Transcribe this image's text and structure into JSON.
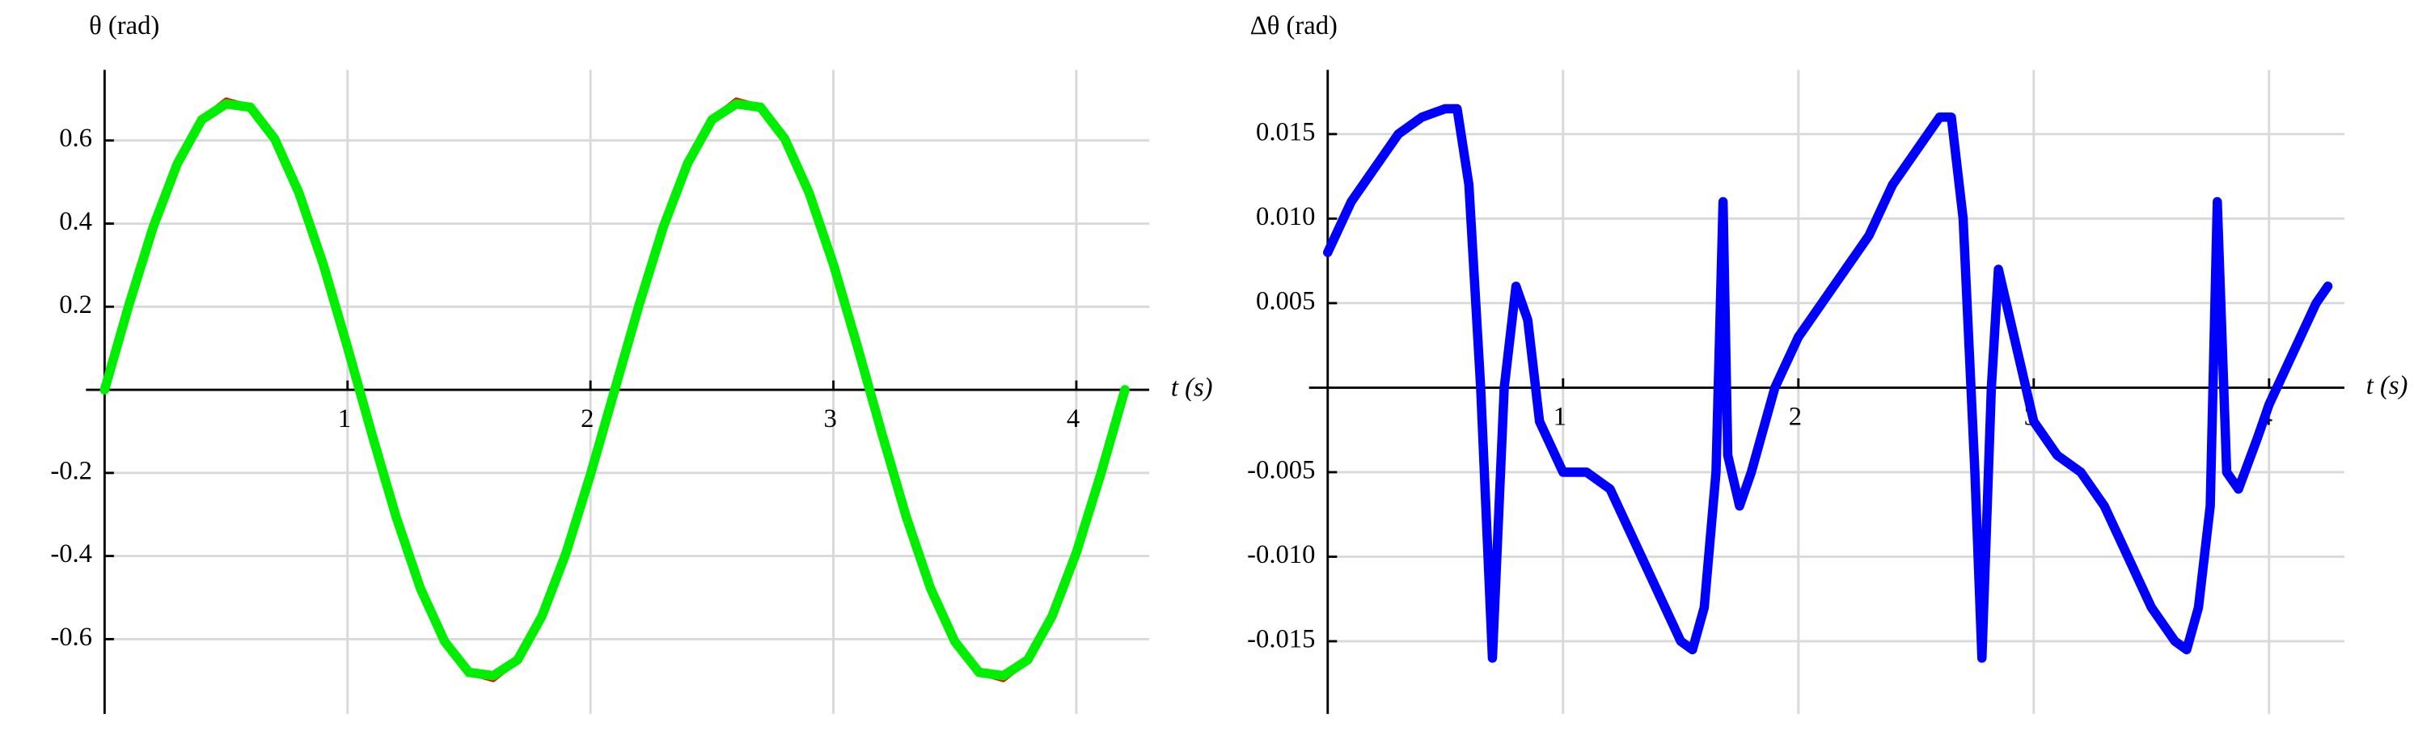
{
  "chart_data": [
    {
      "type": "line",
      "ylabel": "θ (rad)",
      "xlabel": "t (s)",
      "x": [
        0,
        0.1,
        0.2,
        0.3,
        0.4,
        0.5,
        0.6,
        0.7,
        0.8,
        0.9,
        1.0,
        1.1,
        1.2,
        1.3,
        1.4,
        1.5,
        1.6,
        1.7,
        1.8,
        1.9,
        2.0,
        2.1,
        2.2,
        2.3,
        2.4,
        2.5,
        2.6,
        2.7,
        2.8,
        2.9,
        3.0,
        3.1,
        3.2,
        3.3,
        3.4,
        3.5,
        3.6,
        3.7,
        3.8,
        3.9,
        4.0,
        4.1,
        4.2
      ],
      "series": [
        {
          "color": "#ff0000",
          "values": [
            0,
            0.206,
            0.394,
            0.547,
            0.652,
            0.698,
            0.682,
            0.606,
            0.476,
            0.304,
            0.104,
            -0.104,
            -0.304,
            -0.476,
            -0.606,
            -0.682,
            -0.698,
            -0.652,
            -0.547,
            -0.394,
            -0.206,
            0,
            0.206,
            0.394,
            0.547,
            0.652,
            0.698,
            0.682,
            0.606,
            0.476,
            0.304,
            0.104,
            -0.104,
            -0.304,
            -0.476,
            -0.606,
            -0.682,
            -0.698,
            -0.652,
            -0.547,
            -0.394,
            -0.206,
            0
          ]
        },
        {
          "color": "#00ee00",
          "values": [
            0,
            0.204,
            0.392,
            0.545,
            0.65,
            0.688,
            0.68,
            0.604,
            0.474,
            0.302,
            0.102,
            -0.106,
            -0.306,
            -0.478,
            -0.606,
            -0.68,
            -0.688,
            -0.65,
            -0.545,
            -0.392,
            -0.204,
            0,
            0.204,
            0.392,
            0.545,
            0.65,
            0.688,
            0.68,
            0.604,
            0.474,
            0.302,
            0.102,
            -0.106,
            -0.306,
            -0.478,
            -0.606,
            -0.68,
            -0.688,
            -0.65,
            -0.545,
            -0.392,
            -0.204,
            0
          ]
        }
      ],
      "xlim": [
        0,
        4.3
      ],
      "ylim": [
        -0.78,
        0.77
      ],
      "xticks": [
        1,
        2,
        3,
        4
      ],
      "yticks": [
        -0.6,
        -0.4,
        -0.2,
        0.2,
        0.4,
        0.6
      ],
      "grid": true
    },
    {
      "type": "line",
      "ylabel": "Δθ (rad)",
      "xlabel": "t (s)",
      "x": [
        0,
        0.1,
        0.2,
        0.3,
        0.4,
        0.5,
        0.55,
        0.6,
        0.65,
        0.7,
        0.75,
        0.8,
        0.85,
        0.9,
        1.0,
        1.1,
        1.2,
        1.3,
        1.4,
        1.5,
        1.55,
        1.6,
        1.65,
        1.68,
        1.7,
        1.75,
        1.8,
        1.9,
        2.0,
        2.1,
        2.2,
        2.3,
        2.4,
        2.5,
        2.6,
        2.65,
        2.7,
        2.75,
        2.78,
        2.82,
        2.85,
        2.9,
        3.0,
        3.1,
        3.2,
        3.3,
        3.4,
        3.5,
        3.6,
        3.65,
        3.7,
        3.75,
        3.78,
        3.82,
        3.87,
        3.95,
        4.0,
        4.1,
        4.2,
        4.25
      ],
      "series": [
        {
          "color": "#0000ff",
          "values": [
            0.008,
            0.011,
            0.013,
            0.015,
            0.016,
            0.0165,
            0.0165,
            0.012,
            0.0,
            -0.016,
            0.0,
            0.006,
            0.004,
            -0.002,
            -0.005,
            -0.005,
            -0.006,
            -0.009,
            -0.012,
            -0.015,
            -0.0155,
            -0.013,
            -0.005,
            0.011,
            -0.004,
            -0.007,
            -0.005,
            0.0,
            0.003,
            0.005,
            0.007,
            0.009,
            0.012,
            0.014,
            0.016,
            0.016,
            0.01,
            -0.005,
            -0.016,
            0.0,
            0.007,
            0.004,
            -0.002,
            -0.004,
            -0.005,
            -0.007,
            -0.01,
            -0.013,
            -0.015,
            -0.0155,
            -0.013,
            -0.007,
            0.011,
            -0.005,
            -0.006,
            -0.003,
            -0.001,
            0.002,
            0.005,
            0.006
          ]
        }
      ],
      "xlim": [
        0,
        4.32
      ],
      "ylim": [
        -0.0193,
        0.0188
      ],
      "xticks": [
        1,
        2,
        3,
        4
      ],
      "yticks": [
        {
          "value": -0.015,
          "label": "-0.015"
        },
        {
          "value": -0.01,
          "label": "-0.010"
        },
        {
          "value": -0.005,
          "label": "-0.005"
        },
        {
          "value": 0.005,
          "label": "0.005"
        },
        {
          "value": 0.01,
          "label": "0.010"
        },
        {
          "value": 0.015,
          "label": "0.015"
        }
      ],
      "grid": true
    }
  ]
}
